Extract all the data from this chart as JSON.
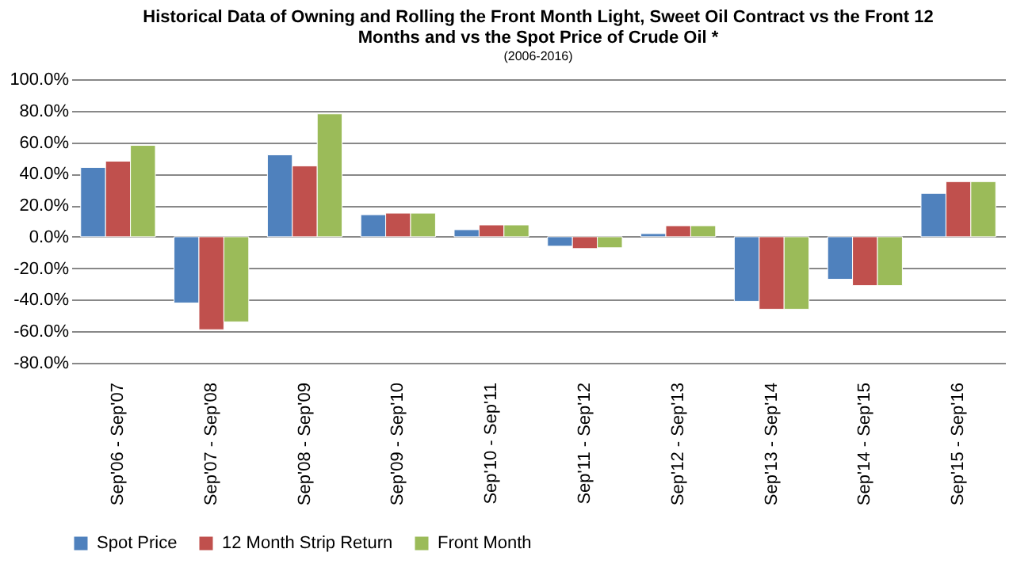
{
  "chart_data": {
    "type": "bar",
    "title": [
      "Historical Data of Owning and Rolling the Front Month Light, Sweet Oil Contract vs the Front 12",
      "Months  and vs the Spot Price of Crude Oil *"
    ],
    "subtitle": "(2006-2016)",
    "categories": [
      "Sep'06 - Sep'07",
      "Sep'07 - Sep'08",
      "Sep'08 - Sep'09",
      "Sep'09 - Sep'10",
      "Sep'10 - Sep'11",
      "Sep'11 - Sep'12",
      "Sep'12 - Sep'13",
      "Sep'13 - Sep'14",
      "Sep'14 - Sep'15",
      "Sep'15 - Sep'16"
    ],
    "series": [
      {
        "name": "Spot Price",
        "color": "#4f81bd",
        "values": [
          44,
          -42,
          52,
          14,
          4.5,
          -6,
          2,
          -41,
          -27,
          27.5
        ]
      },
      {
        "name": "12 Month Strip Return",
        "color": "#c0504d",
        "values": [
          48,
          -59,
          45,
          15,
          7.5,
          -7.5,
          7,
          -46,
          -31,
          35
        ]
      },
      {
        "name": "Front Month",
        "color": "#9bbb59",
        "values": [
          58,
          -54,
          78,
          15,
          7.5,
          -7,
          7,
          -46,
          -31,
          35
        ]
      }
    ],
    "ylim": [
      -80,
      100
    ],
    "yticks": [
      {
        "value": -80,
        "label": "-80.0%"
      },
      {
        "value": -60,
        "label": "-60.0%"
      },
      {
        "value": -40,
        "label": "-40.0%"
      },
      {
        "value": -20,
        "label": "-20.0%"
      },
      {
        "value": 0,
        "label": "0.0%"
      },
      {
        "value": 20,
        "label": "20.0%"
      },
      {
        "value": 40,
        "label": "40.0%"
      },
      {
        "value": 60,
        "label": "60.0%"
      },
      {
        "value": 80,
        "label": "80.0%"
      },
      {
        "value": 100,
        "label": "100.0%"
      }
    ],
    "grid": "y",
    "legend": "bottom"
  }
}
